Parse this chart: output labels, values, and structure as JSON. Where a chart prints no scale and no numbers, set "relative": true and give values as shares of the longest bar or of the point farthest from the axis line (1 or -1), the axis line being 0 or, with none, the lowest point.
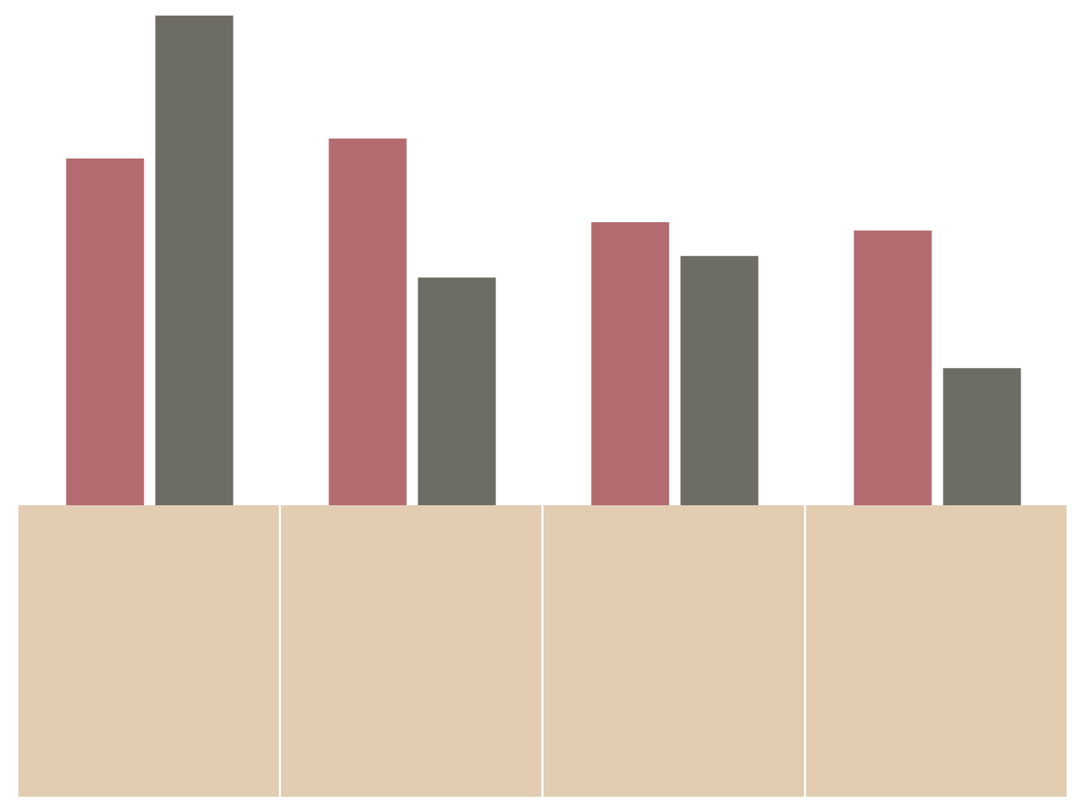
{
  "chart_data": {
    "type": "bar",
    "relative": true,
    "categories": [
      null,
      null,
      null,
      null
    ],
    "series": [
      {
        "color": "#b36b70",
        "values": [
          0.708,
          0.749,
          0.578,
          0.561
        ]
      },
      {
        "color": "#6e6d65",
        "values": [
          1,
          0.465,
          0.509,
          0.28
        ]
      }
    ]
  }
}
